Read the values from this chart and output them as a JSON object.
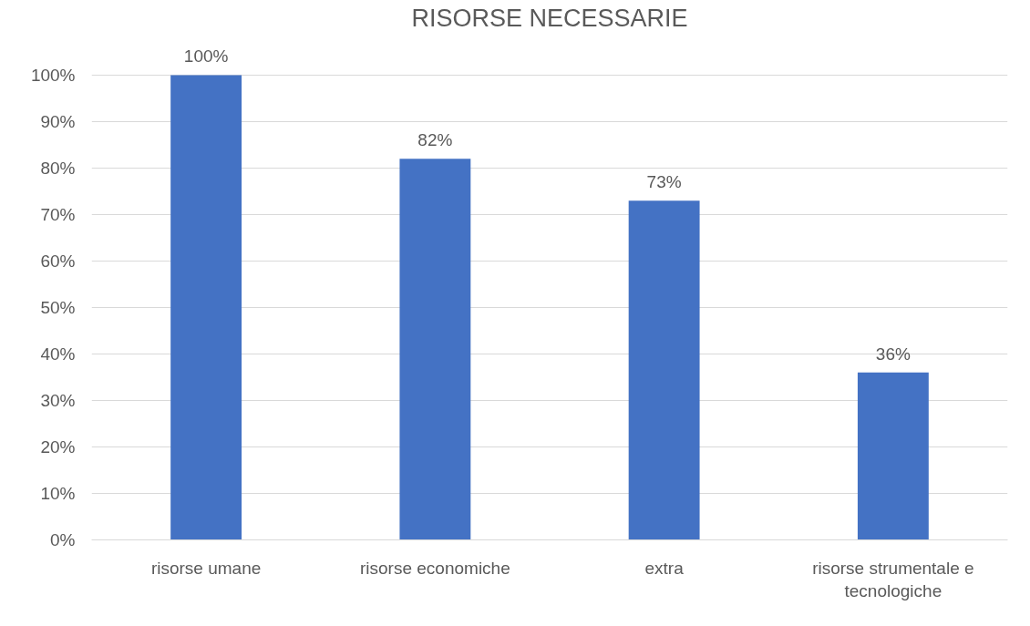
{
  "chart_data": {
    "type": "bar",
    "title": "RISORSE NECESSARIE",
    "categories": [
      "risorse umane",
      "risorse economiche",
      "extra",
      "risorse strumentale e tecnologiche"
    ],
    "values": [
      100,
      82,
      73,
      36
    ],
    "value_labels": [
      "100%",
      "82%",
      "73%",
      "36%"
    ],
    "color": "#4472c4",
    "ylim": [
      0,
      100
    ],
    "yticks": [
      {
        "value": 0,
        "label": "0%"
      },
      {
        "value": 10,
        "label": "10%"
      },
      {
        "value": 20,
        "label": "20%"
      },
      {
        "value": 30,
        "label": "30%"
      },
      {
        "value": 40,
        "label": "40%"
      },
      {
        "value": 50,
        "label": "50%"
      },
      {
        "value": 60,
        "label": "60%"
      },
      {
        "value": 70,
        "label": "70%"
      },
      {
        "value": 80,
        "label": "80%"
      },
      {
        "value": 90,
        "label": "90%"
      },
      {
        "value": 100,
        "label": "100%"
      }
    ],
    "grid": "y"
  }
}
